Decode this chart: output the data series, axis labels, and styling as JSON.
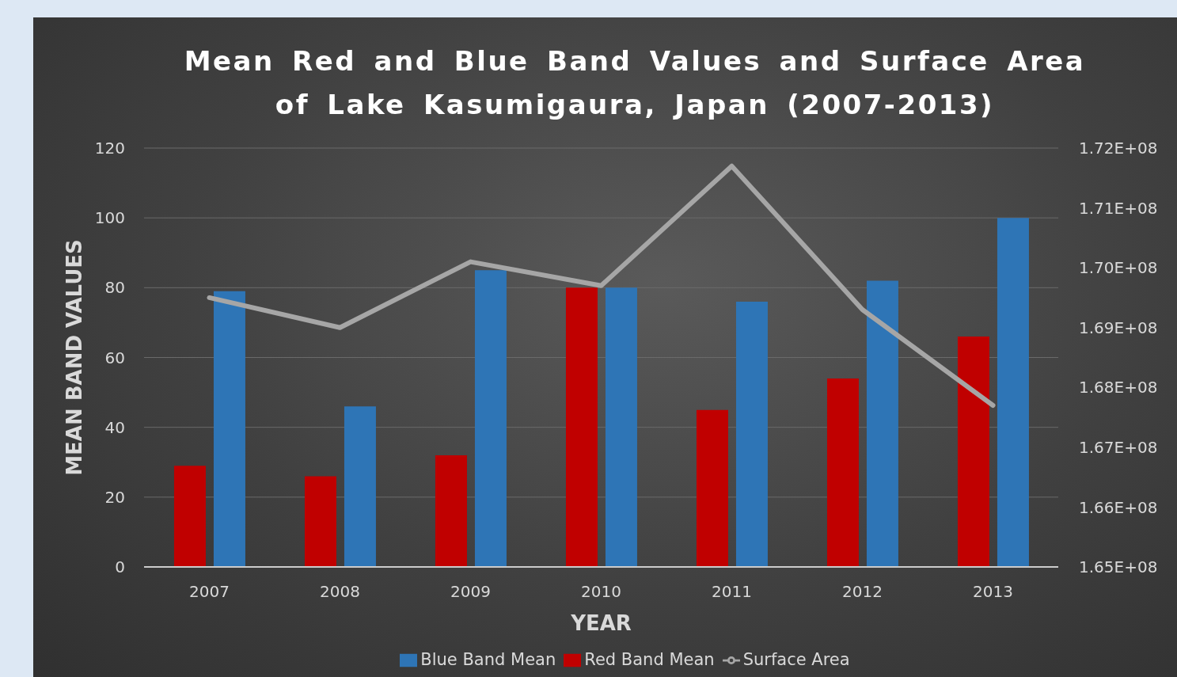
{
  "chart_data": {
    "type": "bar",
    "title": "Mean Red and Blue Band Values and Surface Area of Lake Kasumigaura, Japan (2007-2013)",
    "xlabel": "YEAR",
    "ylabel": "MEAN BAND VALUES",
    "categories": [
      "2007",
      "2008",
      "2009",
      "2010",
      "2011",
      "2012",
      "2013"
    ],
    "series": [
      {
        "name": "Red Band Mean",
        "color": "#c00000",
        "values": [
          29,
          26,
          32,
          80,
          45,
          54,
          66
        ]
      },
      {
        "name": "Blue Band Mean",
        "color": "#2e75b6",
        "values": [
          79,
          46,
          85,
          80,
          76,
          82,
          100
        ]
      },
      {
        "name": "Surface Area",
        "type": "line",
        "axis": "y2",
        "color": "#a6a6a6",
        "values": [
          169500000,
          169000000,
          170100000,
          169700000,
          171700000,
          169300000,
          167700000
        ]
      }
    ],
    "ylim": [
      0,
      120
    ],
    "yticks": [
      0,
      20,
      40,
      60,
      80,
      100,
      120
    ],
    "y2lim": [
      165000000,
      172000000
    ],
    "y2ticks": [
      {
        "value": 165000000,
        "label": "1.65E+08"
      },
      {
        "value": 166000000,
        "label": "1.66E+08"
      },
      {
        "value": 167000000,
        "label": "1.67E+08"
      },
      {
        "value": 168000000,
        "label": "1.68E+08"
      },
      {
        "value": 169000000,
        "label": "1.69E+08"
      },
      {
        "value": 170000000,
        "label": "1.70E+08"
      },
      {
        "value": 171000000,
        "label": "1.71E+08"
      },
      {
        "value": 172000000,
        "label": "1.72E+08"
      }
    ],
    "grid": "y",
    "legend": "bottom",
    "marker": "none",
    "line_style": "solid"
  }
}
